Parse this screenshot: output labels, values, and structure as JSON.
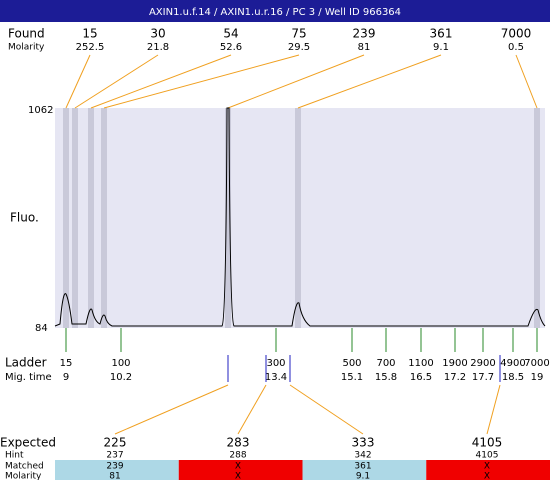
{
  "header": {
    "title": "AXIN1.u.f.14 / AXIN1.u.r.16 / PC 3 / Well ID 966364"
  },
  "found": {
    "label": "Found",
    "sub_label": "Molarity",
    "peaks": [
      {
        "size": 15,
        "molarity": 252.5
      },
      {
        "size": 30,
        "molarity": 21.8
      },
      {
        "size": 54,
        "molarity": 52.6
      },
      {
        "size": 75,
        "molarity": 29.5
      },
      {
        "size": 239,
        "molarity": 81
      },
      {
        "size": 361,
        "molarity": 9.1
      },
      {
        "size": 7000,
        "molarity": 0.5
      }
    ]
  },
  "axis": {
    "top": 1062,
    "bottom": 84,
    "label": "Fluo."
  },
  "ladder": {
    "label": "Ladder",
    "sub_label": "Mig. time",
    "items": [
      {
        "size": 15,
        "time": 9
      },
      {
        "size": 100,
        "time": 10.2
      },
      {
        "size": 300,
        "time": 13.4
      },
      {
        "size": 500,
        "time": 15.1
      },
      {
        "size": 700,
        "time": 15.8
      },
      {
        "size": 1100,
        "time": 16.5
      },
      {
        "size": 1900,
        "time": 17.2
      },
      {
        "size": 2900,
        "time": 17.7
      },
      {
        "size": 4900,
        "time": 18.5
      },
      {
        "size": 7000,
        "time": 19
      }
    ]
  },
  "expected": {
    "labels": [
      "Expected",
      "Hint",
      "Matched",
      "Molarity"
    ],
    "columns": [
      {
        "expected": 225,
        "hint": 237,
        "matched": 239,
        "molarity": 81
      },
      {
        "expected": 283,
        "hint": 288,
        "matched": "X",
        "molarity": "X"
      },
      {
        "expected": 333,
        "hint": 342,
        "matched": 361,
        "molarity": 9.1
      },
      {
        "expected": 4105,
        "hint": 4105,
        "matched": "X",
        "molarity": "X"
      }
    ]
  }
}
